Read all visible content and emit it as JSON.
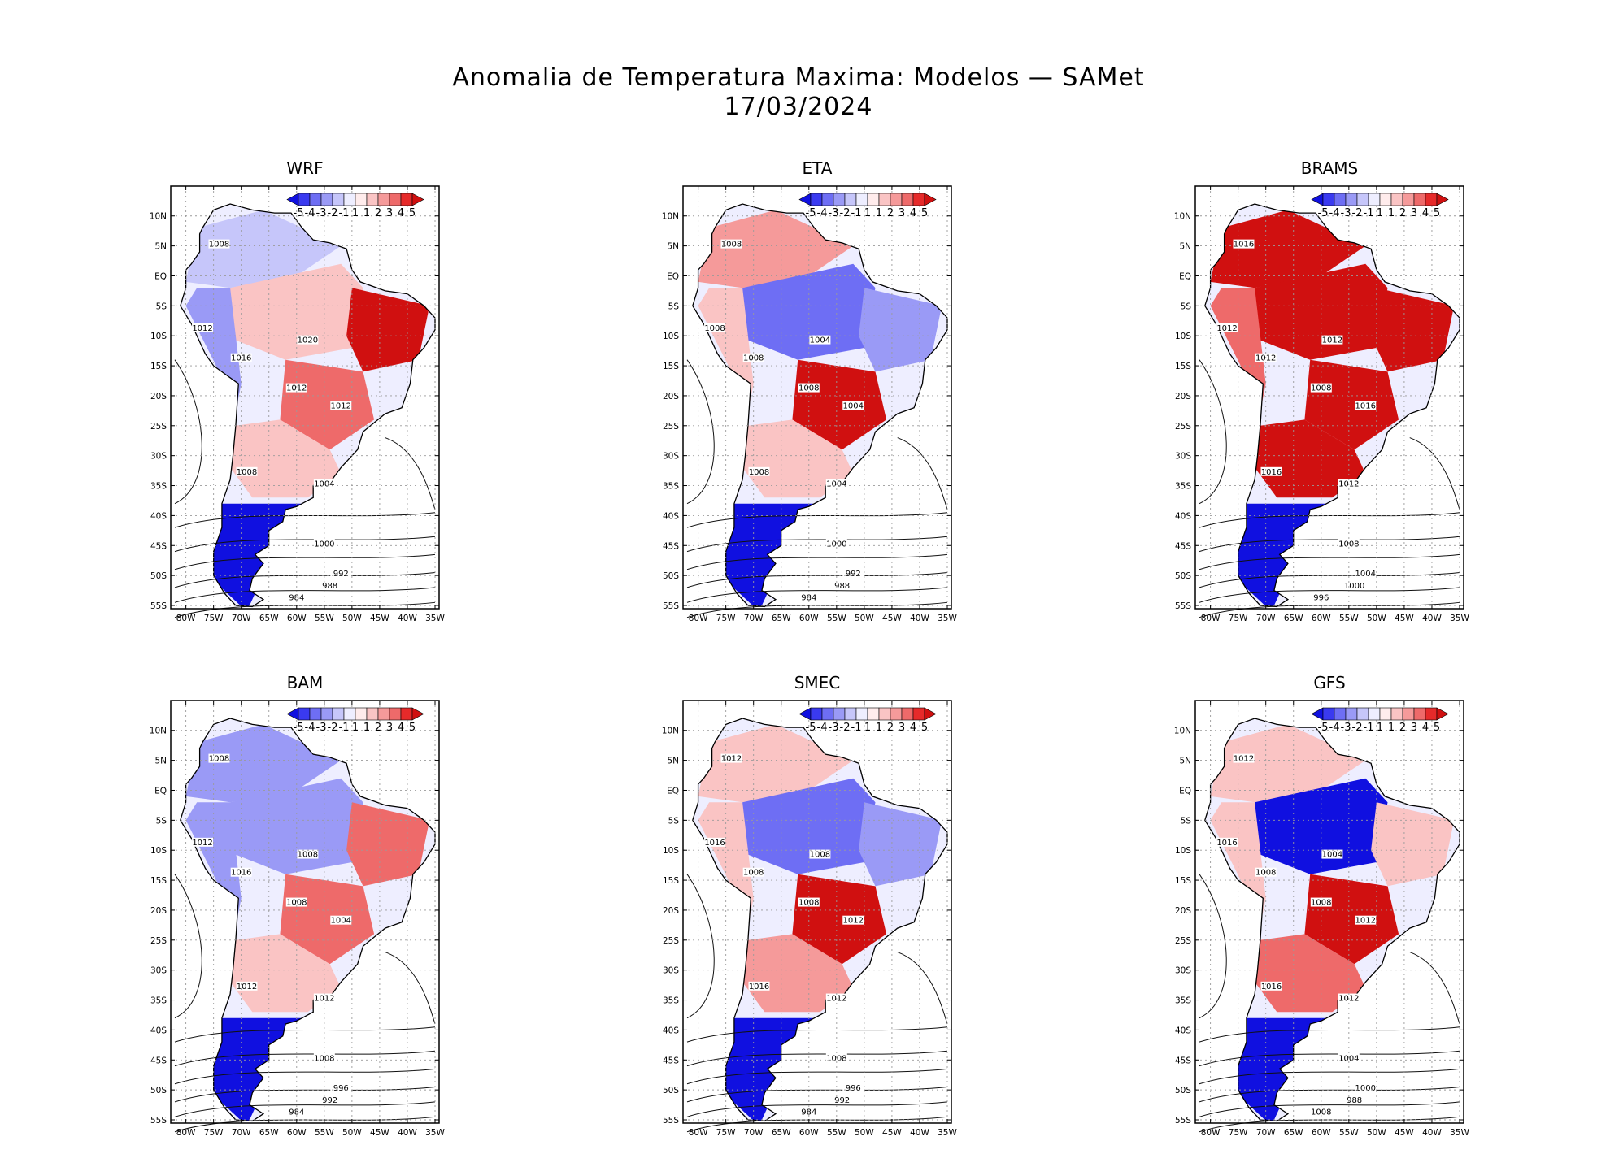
{
  "figure": {
    "title_line1": "Anomalia de Temperatura Maxima: Modelos — SAMet",
    "title_line2": "17/03/2024"
  },
  "chart_data": [
    {
      "type": "map",
      "title": "WRF",
      "pattern": [
        -0.3,
        0.2,
        0.9,
        0.8,
        0.2,
        -0.5,
        -1
      ],
      "contours": [
        "1008",
        "1012",
        "1016",
        "1020",
        "1012",
        "1012",
        "1008",
        "1004",
        "1000",
        "992",
        "988",
        "984"
      ]
    },
    {
      "type": "map",
      "title": "ETA",
      "pattern": [
        0.4,
        -0.8,
        -0.6,
        0.9,
        0.3,
        0.2,
        -1
      ],
      "contours": [
        "1008",
        "1008",
        "1008",
        "1004",
        "1004",
        "1008",
        "1008",
        "1004",
        "1000",
        "992",
        "988",
        "984"
      ]
    },
    {
      "type": "map",
      "title": "BRAMS",
      "pattern": [
        0.9,
        1,
        1,
        1,
        0.9,
        0.8,
        -1
      ],
      "contours": [
        "1016",
        "1012",
        "1012",
        "1012",
        "1016",
        "1008",
        "1016",
        "1012",
        "1008",
        "1004",
        "1000",
        "996"
      ]
    },
    {
      "type": "map",
      "title": "BAM",
      "pattern": [
        -0.4,
        -0.6,
        0.7,
        0.6,
        0.1,
        -0.4,
        -1
      ],
      "contours": [
        "1008",
        "1012",
        "1016",
        "1008",
        "1004",
        "1008",
        "1012",
        "1012",
        "1008",
        "996",
        "992",
        "984"
      ]
    },
    {
      "type": "map",
      "title": "SMEC",
      "pattern": [
        0.3,
        -0.8,
        -0.5,
        1,
        0.5,
        0.3,
        -1
      ],
      "contours": [
        "1012",
        "1016",
        "1008",
        "1008",
        "1012",
        "1008",
        "1016",
        "1012",
        "1008",
        "996",
        "992",
        "984"
      ]
    },
    {
      "type": "map",
      "title": "GFS",
      "pattern": [
        0.2,
        -0.9,
        0.2,
        1,
        0.6,
        0.3,
        -1
      ],
      "contours": [
        "1012",
        "1016",
        "1008",
        "1004",
        "1012",
        "1008",
        "1016",
        "1012",
        "1004",
        "1000",
        "988",
        "1008"
      ]
    }
  ],
  "axes": {
    "lat_labels": [
      "10N",
      "5N",
      "EQ",
      "5S",
      "10S",
      "15S",
      "20S",
      "25S",
      "30S",
      "35S",
      "40S",
      "45S",
      "50S",
      "55S"
    ],
    "lon_labels": [
      "80W",
      "75W",
      "70W",
      "65W",
      "60W",
      "55W",
      "50W",
      "45W",
      "40W",
      "35W"
    ]
  },
  "colorbar": {
    "labels": [
      "-5",
      "-4",
      "-3",
      "-2",
      "-1",
      "1",
      "1",
      "2",
      "3",
      "4",
      "5"
    ],
    "colors": [
      "#1010e0",
      "#3a3af0",
      "#6e6ef4",
      "#9a9af6",
      "#c6c6fa",
      "#eeeeff",
      "#ffecec",
      "#fac4c4",
      "#f59a9a",
      "#ee6a6a",
      "#e62a2a",
      "#d01010"
    ]
  }
}
